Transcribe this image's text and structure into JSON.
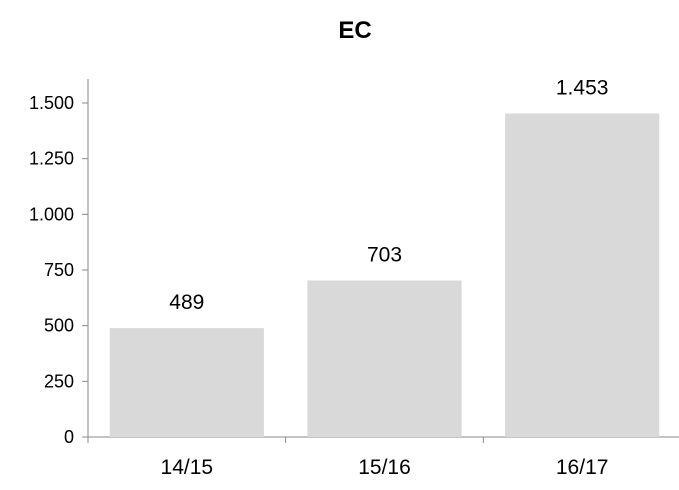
{
  "chart_data": {
    "type": "bar",
    "title": "EC",
    "categories": [
      "14/15",
      "15/16",
      "16/17"
    ],
    "values": [
      489,
      703,
      1453
    ],
    "value_labels": [
      "489",
      "703",
      "1.453"
    ],
    "ylim": [
      0,
      1500
    ],
    "yticks": [
      0,
      250,
      500,
      750,
      1000,
      1250,
      1500
    ],
    "ytick_labels": [
      "0",
      "250",
      "500",
      "750",
      "1.000",
      "1.250",
      "1.500"
    ],
    "xlabel": "",
    "ylabel": "",
    "grid": false,
    "legend": "none",
    "bar_color": "#d9d9d9"
  }
}
